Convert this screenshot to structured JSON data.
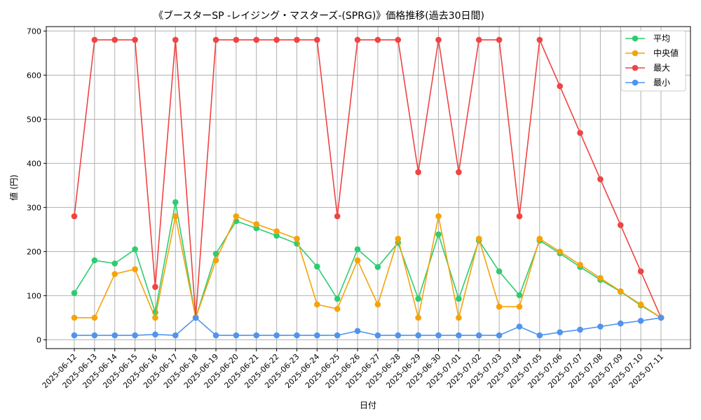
{
  "chart_data": {
    "type": "line",
    "title": "《ブースターSP -レイジング・マスターズ-(SPRG)》価格推移(過去30日間)",
    "xlabel": "日付",
    "ylabel": "値 (円)",
    "ylim": [
      -20,
      710
    ],
    "yticks": [
      0,
      100,
      200,
      300,
      400,
      500,
      600,
      700
    ],
    "grid": true,
    "legend_position": "top-right",
    "categories": [
      "2025-06-12",
      "2025-06-13",
      "2025-06-14",
      "2025-06-15",
      "2025-06-16",
      "2025-06-17",
      "2025-06-18",
      "2025-06-19",
      "2025-06-20",
      "2025-06-21",
      "2025-06-22",
      "2025-06-23",
      "2025-06-24",
      "2025-06-25",
      "2025-06-26",
      "2025-06-27",
      "2025-06-28",
      "2025-06-29",
      "2025-06-30",
      "2025-07-01",
      "2025-07-02",
      "2025-07-03",
      "2025-07-04",
      "2025-07-05",
      "2025-07-06",
      "2025-07-07",
      "2025-07-08",
      "2025-07-09",
      "2025-07-10",
      "2025-07-11"
    ],
    "series": [
      {
        "name": "平均",
        "color": "#2ecc71",
        "values": [
          106,
          180,
          173,
          205,
          62,
          312,
          50,
          195,
          269,
          253,
          236,
          218,
          166,
          93,
          205,
          165,
          220,
          93,
          239,
          93,
          225,
          155,
          101,
          225,
          196,
          165,
          136,
          109,
          78,
          50
        ]
      },
      {
        "name": "中央値",
        "color": "#f5a30a",
        "values": [
          50,
          50,
          149,
          160,
          50,
          280,
          50,
          180,
          280,
          262,
          246,
          229,
          80,
          70,
          180,
          80,
          229,
          50,
          280,
          50,
          229,
          75,
          75,
          229,
          200,
          170,
          140,
          110,
          80,
          50
        ]
      },
      {
        "name": "最大",
        "color": "#ef4444",
        "values": [
          280,
          680,
          680,
          680,
          120,
          680,
          50,
          680,
          680,
          680,
          680,
          680,
          680,
          280,
          680,
          680,
          680,
          380,
          680,
          380,
          680,
          680,
          280,
          680,
          575,
          469,
          364,
          260,
          155,
          50
        ]
      },
      {
        "name": "最小",
        "color": "#4f94ef",
        "values": [
          10,
          10,
          10,
          10,
          12,
          10,
          50,
          10,
          10,
          10,
          10,
          10,
          10,
          10,
          20,
          10,
          10,
          10,
          10,
          10,
          10,
          10,
          30,
          10,
          17,
          23,
          30,
          37,
          43,
          50
        ]
      }
    ]
  }
}
